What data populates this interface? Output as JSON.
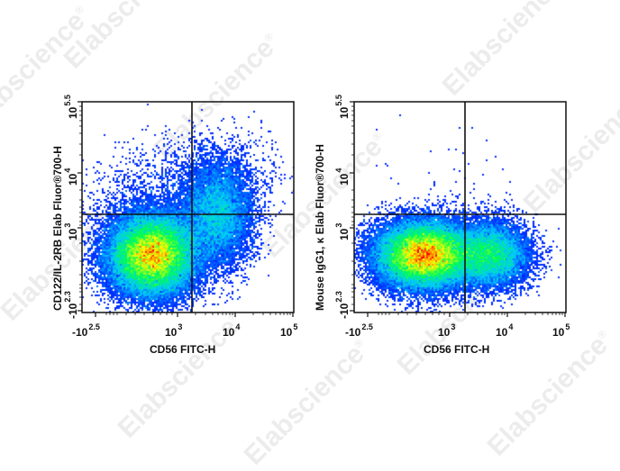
{
  "figure": {
    "watermark_text": "Elabscience",
    "watermark_mark": "®"
  },
  "panels": [
    {
      "x_label": "CD56  FITC-H",
      "y_label": "CD122/IL-2RB Elab Fluor®700-H",
      "x_ticks": [
        {
          "base": "-10",
          "exp": "2.5"
        },
        {
          "base": "10",
          "exp": "3"
        },
        {
          "base": "10",
          "exp": "4"
        },
        {
          "base": "10",
          "exp": "5"
        }
      ],
      "y_ticks": [
        {
          "base": "10",
          "exp": "5.5"
        },
        {
          "base": "10",
          "exp": "4"
        },
        {
          "base": "10",
          "exp": "3"
        },
        {
          "base": "-10",
          "exp": "2.3"
        }
      ]
    },
    {
      "x_label": "CD56  FITC-H",
      "y_label": "Mouse IgG1, κ Elab Fluor®700-H",
      "x_ticks": [
        {
          "base": "-10",
          "exp": "2.5"
        },
        {
          "base": "10",
          "exp": "3"
        },
        {
          "base": "10",
          "exp": "4"
        },
        {
          "base": "10",
          "exp": "5"
        }
      ],
      "y_ticks": [
        {
          "base": "10",
          "exp": "5.5"
        },
        {
          "base": "10",
          "exp": "4"
        },
        {
          "base": "10",
          "exp": "3"
        },
        {
          "base": "-10",
          "exp": "2.3"
        }
      ]
    }
  ],
  "chart_data": [
    {
      "type": "scatter",
      "subtype": "flow-cytometry pseudocolor density plot",
      "title": "",
      "xlabel": "CD56  FITC-H",
      "ylabel": "CD122/IL-2RB Elab Fluor®700-H",
      "x_scale": "biexponential",
      "y_scale": "biexponential",
      "xlim": [
        "-10^2.5",
        "10^5"
      ],
      "ylim": [
        "-10^2.3",
        "10^5.5"
      ],
      "x_tick_labels": [
        "-10^2.5",
        "10^3",
        "10^4",
        "10^5"
      ],
      "y_tick_labels": [
        "-10^2.3",
        "10^3",
        "10^4",
        "10^5.5"
      ],
      "quadrant_gate": {
        "x": 2500,
        "y": 1500
      },
      "populations": [
        {
          "name": "CD56- CD122- (main)",
          "center_x": 700,
          "center_y": 500,
          "density": "highest (red core)"
        },
        {
          "name": "CD56+ CD122+",
          "center_x": 5000,
          "center_y": 1800,
          "density": "moderate (green/cyan)"
        }
      ],
      "colormap": [
        "#0000ff",
        "#00ffff",
        "#00ff00",
        "#ffff00",
        "#ff0000"
      ],
      "grid": false,
      "legend": null
    },
    {
      "type": "scatter",
      "subtype": "flow-cytometry pseudocolor density plot (isotype control)",
      "title": "",
      "xlabel": "CD56  FITC-H",
      "ylabel": "Mouse IgG1, κ Elab Fluor®700-H",
      "x_scale": "biexponential",
      "y_scale": "biexponential",
      "xlim": [
        "-10^2.5",
        "10^5"
      ],
      "ylim": [
        "-10^2.3",
        "10^5.5"
      ],
      "x_tick_labels": [
        "-10^2.5",
        "10^3",
        "10^4",
        "10^5"
      ],
      "y_tick_labels": [
        "-10^2.3",
        "10^3",
        "10^4",
        "10^5.5"
      ],
      "quadrant_gate": {
        "x": 2500,
        "y": 1500
      },
      "populations": [
        {
          "name": "CD56- isotype-",
          "center_x": 700,
          "center_y": 500,
          "density": "highest (red core)"
        },
        {
          "name": "CD56+ isotype-",
          "center_x": 5000,
          "center_y": 500,
          "density": "moderate (green/cyan)"
        }
      ],
      "colormap": [
        "#0000ff",
        "#00ffff",
        "#00ff00",
        "#ffff00",
        "#ff0000"
      ],
      "grid": false,
      "legend": null
    }
  ]
}
